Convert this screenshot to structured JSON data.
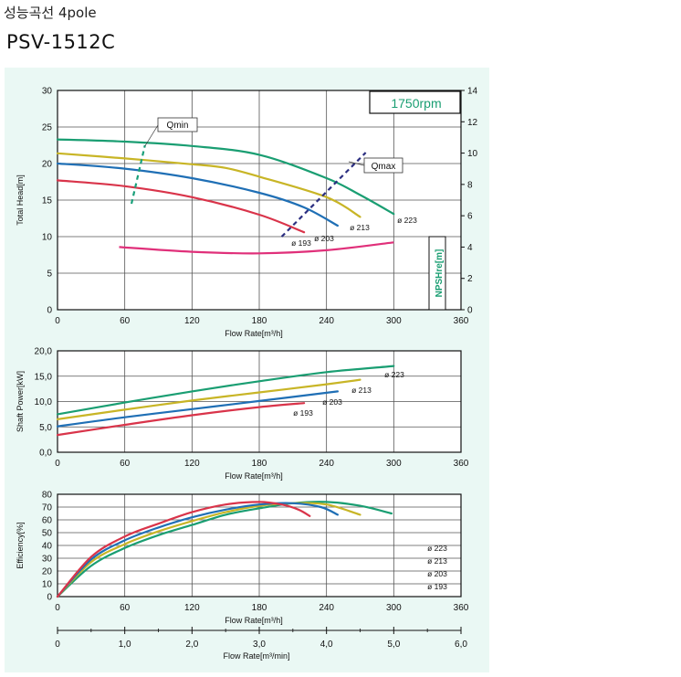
{
  "header": {
    "title": "성능곡선 4pole",
    "model": "PSV-1512C"
  },
  "chart_data": [
    {
      "type": "line",
      "rpm_label": "1750rpm",
      "xlabel": "Flow Rate[m³/h]",
      "ylabel": "Total Head[m]",
      "y2label": "NPSHre[m]",
      "xlim": [
        0,
        360
      ],
      "ylim": [
        0,
        30
      ],
      "y2lim": [
        0,
        14
      ],
      "xticks": [
        "0",
        "60",
        "120",
        "180",
        "240",
        "300",
        "360"
      ],
      "yticks": [
        "0",
        "5",
        "10",
        "15",
        "20",
        "25",
        "30"
      ],
      "y2ticks": [
        "0",
        "2",
        "4",
        "6",
        "8",
        "10",
        "12",
        "14"
      ],
      "grid": true,
      "series": [
        {
          "name": "ø 223",
          "color": "#1a9e72",
          "x": [
            0,
            60,
            120,
            180,
            240,
            270,
            300
          ],
          "y": [
            23.3,
            23.0,
            22.4,
            21.2,
            18.0,
            15.7,
            13.1
          ]
        },
        {
          "name": "ø 213",
          "color": "#c8b526",
          "x": [
            0,
            60,
            120,
            150,
            180,
            240,
            270
          ],
          "y": [
            21.4,
            20.7,
            19.9,
            19.4,
            18.2,
            15.4,
            12.7
          ]
        },
        {
          "name": "ø 203",
          "color": "#1f6fb5",
          "x": [
            0,
            60,
            120,
            180,
            220,
            250
          ],
          "y": [
            20.0,
            19.3,
            18.0,
            16.0,
            14.0,
            11.5
          ]
        },
        {
          "name": "ø 193",
          "color": "#d9344a",
          "x": [
            0,
            60,
            120,
            180,
            220
          ],
          "y": [
            17.7,
            16.9,
            15.4,
            13.0,
            10.6
          ]
        }
      ],
      "npsh": {
        "color": "#e0307a",
        "x": [
          55,
          120,
          180,
          240,
          300
        ],
        "y": [
          4.0,
          3.7,
          3.6,
          3.8,
          4.3
        ]
      },
      "qmin": {
        "label": "Qmin",
        "color": "#1aa07a",
        "x": [
          66,
          78
        ],
        "y": [
          14.5,
          22.5
        ]
      },
      "qmax": {
        "label": "Qmax",
        "color": "#2b2e80",
        "x": [
          200,
          275
        ],
        "y": [
          10.0,
          21.5
        ]
      }
    },
    {
      "type": "line",
      "xlabel": "Flow Rate[m³/h]",
      "ylabel": "Shaft Power[kW]",
      "xlim": [
        0,
        360
      ],
      "ylim": [
        0,
        20
      ],
      "xticks": [
        "0",
        "60",
        "120",
        "180",
        "240",
        "300",
        "360"
      ],
      "yticks": [
        "0,0",
        "5,0",
        "10,0",
        "15,0",
        "20,0"
      ],
      "grid": true,
      "series": [
        {
          "name": "ø 223",
          "color": "#1a9e72",
          "x": [
            0,
            60,
            120,
            180,
            240,
            300
          ],
          "y": [
            7.5,
            9.8,
            12.0,
            14.0,
            15.8,
            17.0
          ]
        },
        {
          "name": "ø 213",
          "color": "#c8b526",
          "x": [
            0,
            60,
            120,
            180,
            240,
            270
          ],
          "y": [
            6.5,
            8.4,
            10.2,
            11.8,
            13.4,
            14.3
          ]
        },
        {
          "name": "ø 203",
          "color": "#1f6fb5",
          "x": [
            0,
            60,
            120,
            180,
            250
          ],
          "y": [
            5.1,
            6.9,
            8.5,
            10.1,
            12.0
          ]
        },
        {
          "name": "ø 193",
          "color": "#d9344a",
          "x": [
            0,
            60,
            120,
            180,
            220
          ],
          "y": [
            3.4,
            5.4,
            7.3,
            8.9,
            9.7
          ]
        }
      ]
    },
    {
      "type": "line",
      "xlabel": "Flow Rate[m³/h]",
      "ylabel": "Efficiency[%]",
      "xlim": [
        0,
        360
      ],
      "ylim": [
        0,
        80
      ],
      "xticks": [
        "0",
        "60",
        "120",
        "180",
        "240",
        "300",
        "360"
      ],
      "yticks": [
        "0",
        "10",
        "20",
        "30",
        "40",
        "50",
        "60",
        "70",
        "80"
      ],
      "grid": true,
      "series": [
        {
          "name": "ø 223",
          "color": "#1a9e72",
          "x": [
            0,
            30,
            60,
            90,
            120,
            150,
            180,
            210,
            240,
            270,
            298
          ],
          "y": [
            0,
            24,
            38,
            48,
            56,
            64,
            69,
            73,
            74,
            71,
            65
          ]
        },
        {
          "name": "ø 213",
          "color": "#c8b526",
          "x": [
            0,
            30,
            60,
            90,
            120,
            150,
            180,
            210,
            240,
            270
          ],
          "y": [
            0,
            27,
            41,
            51,
            59,
            66,
            71,
            73,
            72,
            64
          ]
        },
        {
          "name": "ø 203",
          "color": "#1f6fb5",
          "x": [
            0,
            30,
            60,
            90,
            120,
            150,
            180,
            210,
            235,
            250
          ],
          "y": [
            0,
            29,
            44,
            54,
            62,
            68,
            72,
            73,
            70,
            64
          ]
        },
        {
          "name": "ø 193",
          "color": "#d9344a",
          "x": [
            0,
            30,
            60,
            90,
            120,
            150,
            180,
            200,
            215,
            225
          ],
          "y": [
            0,
            31,
            47,
            57,
            66,
            72,
            74,
            72,
            68,
            63
          ]
        }
      ],
      "legend": [
        "ø 223",
        "ø 213",
        "ø 203",
        "ø 193"
      ],
      "x2label": "Flow Rate[m³/min]",
      "x2lim": [
        0,
        6
      ],
      "x2ticks": [
        "0",
        "1,0",
        "2,0",
        "3,0",
        "4,0",
        "5,0",
        "6,0"
      ]
    }
  ]
}
